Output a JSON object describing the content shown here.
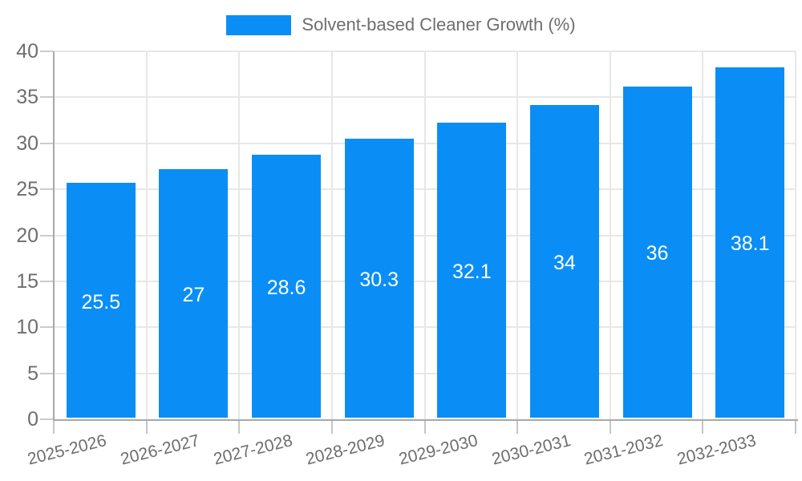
{
  "chart_data": {
    "type": "bar",
    "title": "",
    "legend_label": "Solvent-based Cleaner Growth (%)",
    "legend_position": "top-center",
    "categories": [
      "2025-2026",
      "2026-2027",
      "2027-2028",
      "2028-2029",
      "2029-2030",
      "2030-2031",
      "2031-2032",
      "2032-2033"
    ],
    "values": [
      25.5,
      27,
      28.6,
      30.3,
      32.1,
      34,
      36,
      38.1
    ],
    "xlabel": "",
    "ylabel": "",
    "ylim": [
      0,
      40
    ],
    "yticks": [
      0,
      5,
      10,
      15,
      20,
      25,
      30,
      35,
      40
    ],
    "grid": true,
    "x_label_rotation_deg": -14,
    "bar_color": "#0a8ef6",
    "bar_label_color": "#ffffff",
    "axis_text_color": "#6e6e6e"
  }
}
